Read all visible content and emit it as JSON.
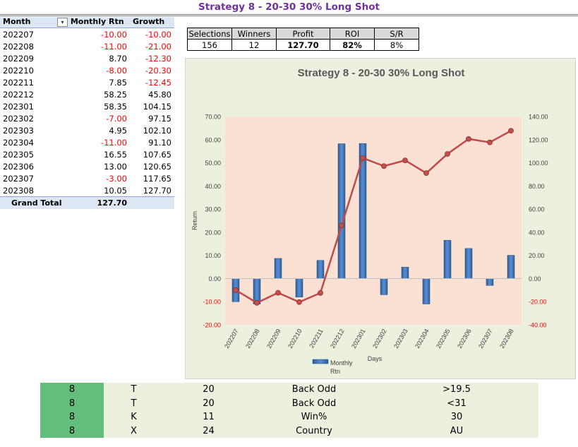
{
  "title": "Strategy 8 - 20-30 30% Long Shot",
  "pivot": {
    "headers": {
      "month": "Month",
      "rtn": "Monthly Rtn",
      "growth": "Growth"
    },
    "rows": [
      {
        "month": "202207",
        "rtn": "-10.00",
        "growth": "-10.00"
      },
      {
        "month": "202208",
        "rtn": "-11.00",
        "growth": "-21.00"
      },
      {
        "month": "202209",
        "rtn": "8.70",
        "growth": "-12.30"
      },
      {
        "month": "202210",
        "rtn": "-8.00",
        "growth": "-20.30"
      },
      {
        "month": "202211",
        "rtn": "7.85",
        "growth": "-12.45"
      },
      {
        "month": "202212",
        "rtn": "58.25",
        "growth": "45.80"
      },
      {
        "month": "202301",
        "rtn": "58.35",
        "growth": "104.15"
      },
      {
        "month": "202302",
        "rtn": "-7.00",
        "growth": "97.15"
      },
      {
        "month": "202303",
        "rtn": "4.95",
        "growth": "102.10"
      },
      {
        "month": "202304",
        "rtn": "-11.00",
        "growth": "91.10"
      },
      {
        "month": "202305",
        "rtn": "16.55",
        "growth": "107.65"
      },
      {
        "month": "202306",
        "rtn": "13.00",
        "growth": "120.65"
      },
      {
        "month": "202307",
        "rtn": "-3.00",
        "growth": "117.65"
      },
      {
        "month": "202308",
        "rtn": "10.05",
        "growth": "127.70"
      }
    ],
    "total_label": "Grand Total",
    "total_value": "127.70"
  },
  "stats": {
    "headers": [
      "Selections",
      "Winners",
      "Profit",
      "ROI",
      "S/R"
    ],
    "values": [
      "156",
      "12",
      "127.70",
      "82%",
      "8%"
    ]
  },
  "chart_data": {
    "type": "bar",
    "title": "Strategy 8 - 20-30 30% Long Shot",
    "xlabel": "Days",
    "ylabel": "Return",
    "categories": [
      "202207",
      "202208",
      "202209",
      "202210",
      "202211",
      "202212",
      "202301",
      "202302",
      "202303",
      "202304",
      "202305",
      "202306",
      "202307",
      "202308"
    ],
    "series": [
      {
        "name": "Monthly Rtn",
        "type": "bar",
        "axis": "left",
        "color": "#4a7ebb",
        "values": [
          -10.0,
          -11.0,
          8.7,
          -8.0,
          7.85,
          58.25,
          58.35,
          -7.0,
          4.95,
          -11.0,
          16.55,
          13.0,
          -3.0,
          10.05
        ]
      },
      {
        "type": "line",
        "axis": "right",
        "color": "#be4b48",
        "values": [
          -10.0,
          -21.0,
          -12.3,
          -20.3,
          -12.45,
          45.8,
          104.15,
          97.15,
          102.1,
          91.1,
          107.65,
          120.65,
          117.65,
          127.7
        ]
      }
    ],
    "ylim": [
      -20,
      70
    ],
    "y2lim": [
      -40,
      140
    ],
    "yticks": [
      "70.00",
      "60.00",
      "50.00",
      "40.00",
      "30.00",
      "20.00",
      "10.00",
      "0.00",
      "-10.00",
      "-20.00"
    ],
    "y2ticks": [
      "140.00",
      "120.00",
      "100.00",
      "80.00",
      "60.00",
      "40.00",
      "20.00",
      "0.00",
      "-20.00",
      "-40.00"
    ],
    "legend_position": "bottom-left",
    "grid": false,
    "colors": {
      "plot_bg": "#fbe1d3",
      "chart_bg": "#ebf1de",
      "negative_tick": "#ff0000"
    }
  },
  "bottom_table": [
    [
      "8",
      "T",
      "20",
      "Back Odd",
      ">19.5"
    ],
    [
      "8",
      "T",
      "20",
      "Back Odd",
      "<31"
    ],
    [
      "8",
      "K",
      "11",
      "Win%",
      "30"
    ],
    [
      "8",
      "X",
      "24",
      "Country",
      "AU"
    ]
  ]
}
